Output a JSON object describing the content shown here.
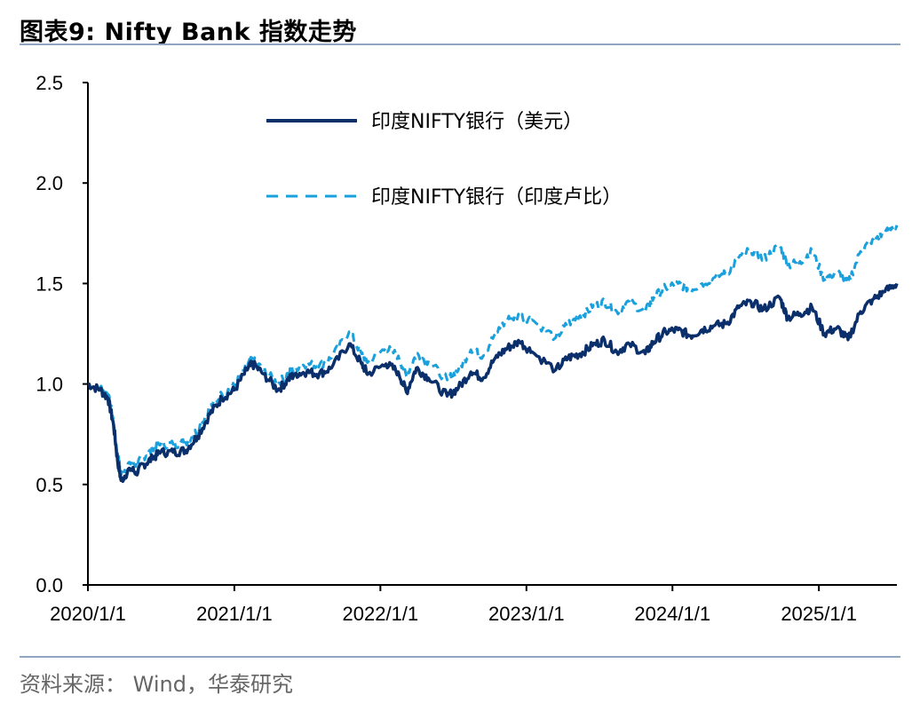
{
  "figure": {
    "title": "图表9:   Nifty Bank 指数走势",
    "source": "资料来源： Wind，华泰研究"
  },
  "colors": {
    "usd_series": "#0a2f6b",
    "inr_series": "#1aa0dc",
    "axis": "#000000",
    "rule": "#8fa5c0"
  },
  "chart_data": {
    "type": "line",
    "title": "Nifty Bank 指数走势",
    "xlabel": "",
    "ylabel": "",
    "ylim": [
      0.0,
      2.5
    ],
    "y_ticks": [
      "0.0",
      "0.5",
      "1.0",
      "1.5",
      "2.0",
      "2.5"
    ],
    "x_tick_labels": [
      "2020/1/1",
      "2021/1/1",
      "2022/1/1",
      "2023/1/1",
      "2024/1/1",
      "2025/1/1"
    ],
    "xlim": [
      "2020-01-01",
      "2025-07-15"
    ],
    "grid": false,
    "legend_position": "top-center",
    "x": [
      "2020-01-01",
      "2020-02-01",
      "2020-02-20",
      "2020-03-05",
      "2020-03-15",
      "2020-03-24",
      "2020-04-15",
      "2020-05-01",
      "2020-05-20",
      "2020-06-10",
      "2020-07-01",
      "2020-08-01",
      "2020-09-01",
      "2020-10-01",
      "2020-11-01",
      "2020-12-01",
      "2021-01-01",
      "2021-02-01",
      "2021-02-15",
      "2021-03-15",
      "2021-04-20",
      "2021-05-15",
      "2021-06-01",
      "2021-07-01",
      "2021-08-01",
      "2021-09-01",
      "2021-10-15",
      "2021-11-15",
      "2021-12-01",
      "2022-01-15",
      "2022-02-15",
      "2022-03-07",
      "2022-04-01",
      "2022-05-01",
      "2022-06-17",
      "2022-07-15",
      "2022-08-15",
      "2022-09-15",
      "2022-10-15",
      "2022-11-15",
      "2022-12-15",
      "2023-01-15",
      "2023-03-15",
      "2023-04-15",
      "2023-05-15",
      "2023-06-15",
      "2023-07-15",
      "2023-08-15",
      "2023-09-15",
      "2023-10-25",
      "2023-11-15",
      "2023-12-15",
      "2024-01-15",
      "2024-02-15",
      "2024-03-15",
      "2024-04-15",
      "2024-05-15",
      "2024-06-15",
      "2024-07-15",
      "2024-08-15",
      "2024-09-25",
      "2024-10-15",
      "2024-11-15",
      "2024-12-15",
      "2025-01-15",
      "2025-02-15",
      "2025-03-15",
      "2025-04-15",
      "2025-05-15",
      "2025-06-15",
      "2025-07-15"
    ],
    "series": [
      {
        "name": "印度NIFTY银行（美元）",
        "color": "#0a2f6b",
        "style": "solid",
        "values": [
          1.0,
          0.97,
          0.93,
          0.8,
          0.62,
          0.52,
          0.58,
          0.56,
          0.6,
          0.63,
          0.66,
          0.66,
          0.67,
          0.74,
          0.85,
          0.93,
          0.97,
          1.07,
          1.1,
          1.05,
          0.97,
          1.02,
          1.05,
          1.06,
          1.05,
          1.08,
          1.2,
          1.1,
          1.05,
          1.1,
          1.06,
          0.96,
          1.08,
          1.03,
          0.94,
          0.98,
          1.06,
          1.03,
          1.13,
          1.18,
          1.21,
          1.16,
          1.07,
          1.13,
          1.15,
          1.19,
          1.22,
          1.16,
          1.2,
          1.15,
          1.21,
          1.26,
          1.27,
          1.24,
          1.27,
          1.29,
          1.3,
          1.38,
          1.41,
          1.37,
          1.43,
          1.33,
          1.35,
          1.38,
          1.25,
          1.28,
          1.22,
          1.36,
          1.42,
          1.46,
          1.5
        ]
      },
      {
        "name": "印度NIFTY银行（印度卢比）",
        "color": "#1aa0dc",
        "style": "dashed",
        "values": [
          1.0,
          0.98,
          0.95,
          0.82,
          0.65,
          0.55,
          0.61,
          0.6,
          0.64,
          0.67,
          0.7,
          0.7,
          0.71,
          0.77,
          0.88,
          0.95,
          0.99,
          1.09,
          1.12,
          1.07,
          1.0,
          1.05,
          1.08,
          1.1,
          1.09,
          1.13,
          1.26,
          1.15,
          1.11,
          1.18,
          1.14,
          1.04,
          1.15,
          1.11,
          1.02,
          1.07,
          1.17,
          1.14,
          1.25,
          1.32,
          1.34,
          1.32,
          1.23,
          1.3,
          1.34,
          1.38,
          1.41,
          1.36,
          1.41,
          1.36,
          1.43,
          1.48,
          1.5,
          1.47,
          1.5,
          1.53,
          1.55,
          1.63,
          1.67,
          1.62,
          1.69,
          1.59,
          1.61,
          1.66,
          1.52,
          1.56,
          1.5,
          1.66,
          1.72,
          1.75,
          1.79
        ]
      }
    ]
  }
}
